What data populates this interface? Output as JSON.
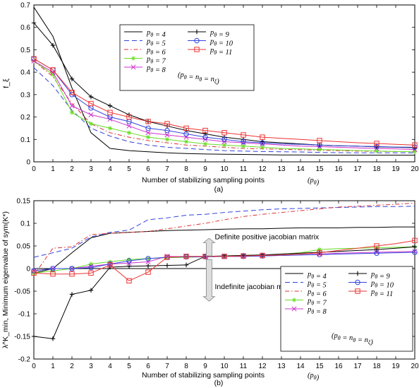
{
  "chart_data": [
    {
      "type": "line",
      "panel_label": "(a)",
      "xlabel": "Number of stabilizing sampling points",
      "xlabel_symbol": "(p_θ)",
      "ylabel": "f_ξ",
      "xlim": [
        0,
        20
      ],
      "ylim": [
        0,
        0.7
      ],
      "x_ticks": [
        0,
        1,
        2,
        3,
        4,
        5,
        6,
        7,
        8,
        9,
        10,
        11,
        12,
        13,
        14,
        15,
        16,
        17,
        18,
        19,
        20
      ],
      "y_ticks": [
        0,
        0.1,
        0.2,
        0.3,
        0.4,
        0.5,
        0.6,
        0.7
      ],
      "grid": false,
      "legend_position": "top-center",
      "legend_note": "(p_θ = n_θ = n_ξ)",
      "series": [
        {
          "name": "p_θ = 4",
          "color": "#000000",
          "dash": "",
          "marker": "none",
          "x": [
            0,
            1,
            2,
            3,
            4,
            5,
            6,
            7,
            8,
            9,
            10,
            11,
            12,
            13,
            14,
            15,
            16,
            17,
            18,
            19,
            20
          ],
          "y": [
            0.69,
            0.56,
            0.33,
            0.13,
            0.06,
            0.05,
            0.045,
            0.04,
            0.037,
            0.035,
            0.034,
            0.033,
            0.032,
            0.031,
            0.031,
            0.03,
            0.03,
            0.03,
            0.03,
            0.03,
            0.03
          ]
        },
        {
          "name": "p_θ = 5",
          "color": "#3344dd",
          "dash": "7,4",
          "marker": "none",
          "x": [
            0,
            1,
            2,
            3,
            4,
            5,
            6,
            7,
            8,
            9,
            10,
            11,
            12,
            13,
            14,
            15,
            16,
            17,
            18,
            19,
            20
          ],
          "y": [
            0.42,
            0.34,
            0.23,
            0.15,
            0.115,
            0.09,
            0.075,
            0.065,
            0.06,
            0.055,
            0.05,
            0.048,
            0.046,
            0.045,
            0.044,
            0.042,
            0.041,
            0.04,
            0.04,
            0.04,
            0.04
          ]
        },
        {
          "name": "p_θ = 6",
          "color": "#dd3333",
          "dash": "6,3,1.5,3",
          "marker": "none",
          "x": [
            0,
            1,
            2,
            3,
            4,
            5,
            6,
            7,
            8,
            9,
            10,
            11,
            12,
            13,
            14,
            15,
            16,
            17,
            18,
            19,
            20
          ],
          "y": [
            0.45,
            0.38,
            0.26,
            0.17,
            0.13,
            0.11,
            0.095,
            0.085,
            0.075,
            0.07,
            0.065,
            0.06,
            0.058,
            0.056,
            0.054,
            0.052,
            0.05,
            0.048,
            0.047,
            0.046,
            0.045
          ]
        },
        {
          "name": "p_θ = 7",
          "color": "#66dd22",
          "dash": "",
          "marker": "star",
          "x": [
            0,
            1,
            2,
            3,
            4,
            5,
            6,
            7,
            8,
            9,
            10,
            11,
            12,
            13,
            14,
            15,
            16,
            17,
            18,
            19,
            20
          ],
          "y": [
            0.45,
            0.39,
            0.22,
            0.17,
            0.15,
            0.13,
            0.11,
            0.1,
            0.09,
            0.08,
            0.075,
            0.07,
            0.065,
            0.06,
            0.058,
            0.055,
            0.053,
            0.05,
            0.048,
            0.046,
            0.045
          ]
        },
        {
          "name": "p_θ = 8",
          "color": "#cc33cc",
          "dash": "",
          "marker": "x",
          "x": [
            0,
            1,
            2,
            3,
            4,
            5,
            6,
            7,
            8,
            9,
            10,
            11,
            12,
            13,
            14,
            15,
            16,
            17,
            18,
            19,
            20
          ],
          "y": [
            0.45,
            0.4,
            0.25,
            0.21,
            0.19,
            0.16,
            0.13,
            0.12,
            0.11,
            0.1,
            0.09,
            0.085,
            0.08,
            0.075,
            0.07,
            0.068,
            0.065,
            0.062,
            0.06,
            0.058,
            0.055
          ]
        },
        {
          "name": "p_θ = 9",
          "color": "#000000",
          "dash": "",
          "marker": "plus",
          "x": [
            0,
            1,
            2,
            3,
            4,
            5,
            6,
            7,
            8,
            9,
            10,
            11,
            12,
            13,
            14,
            15,
            16,
            17,
            18,
            19,
            20
          ],
          "y": [
            0.62,
            0.52,
            0.37,
            0.29,
            0.25,
            0.21,
            0.18,
            0.16,
            0.14,
            0.125,
            0.11,
            0.1,
            0.09,
            0.085,
            0.08,
            0.075,
            0.072,
            0.07,
            0.067,
            0.065,
            0.063
          ]
        },
        {
          "name": "p_θ = 10",
          "color": "#3344dd",
          "dash": "",
          "marker": "circle",
          "x": [
            0,
            1,
            2,
            3,
            4,
            5,
            6,
            7,
            8,
            9,
            10,
            11,
            12,
            13,
            14,
            15,
            16,
            17,
            18,
            19,
            20
          ],
          "y": [
            0.46,
            0.41,
            0.3,
            0.24,
            0.2,
            0.18,
            0.15,
            0.14,
            0.125,
            0.11,
            0.1,
            0.09,
            0.085,
            0.08,
            0.078,
            0.075,
            0.072,
            0.07,
            0.068,
            0.066,
            0.065
          ]
        },
        {
          "name": "p_θ = 11",
          "color": "#ee3333",
          "dash": "",
          "marker": "square",
          "x": [
            0,
            1,
            2,
            3,
            4,
            5,
            6,
            7,
            8,
            9,
            10,
            11,
            12,
            13,
            14,
            15,
            16,
            17,
            18,
            19,
            20
          ],
          "y": [
            0.46,
            0.41,
            0.31,
            0.26,
            0.22,
            0.2,
            0.18,
            0.17,
            0.15,
            0.14,
            0.13,
            0.12,
            0.11,
            0.105,
            0.1,
            0.095,
            0.09,
            0.085,
            0.082,
            0.078,
            0.075
          ]
        }
      ]
    },
    {
      "type": "line",
      "panel_label": "(b)",
      "xlabel": "Number of stabilizing sampling points",
      "xlabel_symbol": "(p_θ)",
      "ylabel": "λ^K_min, Minimum eigenvalue of sym(K*)",
      "xlim": [
        0,
        20
      ],
      "ylim": [
        -0.2,
        0.15
      ],
      "x_ticks": [
        0,
        1,
        2,
        3,
        4,
        5,
        6,
        7,
        8,
        9,
        10,
        11,
        12,
        13,
        14,
        15,
        16,
        17,
        18,
        19,
        20
      ],
      "y_ticks": [
        -0.2,
        -0.15,
        -0.1,
        -0.05,
        0,
        0.05,
        0.1,
        0.15
      ],
      "grid": false,
      "legend_position": "bottom-right",
      "legend_note": "(p_θ = n_θ = n_ξ)",
      "reference_line_y": 0,
      "annotations": [
        "Definite positive jacobian matrix",
        "Indefinite jacobian matrix"
      ],
      "series": [
        {
          "name": "p_θ = 4",
          "color": "#000000",
          "dash": "",
          "marker": "none",
          "x": [
            0,
            1,
            2,
            3,
            4,
            5,
            6,
            7,
            8,
            9,
            10,
            11,
            12,
            13,
            14,
            15,
            16,
            17,
            18,
            19,
            20
          ],
          "y": [
            -0.01,
            0.0,
            0.035,
            0.068,
            0.078,
            0.08,
            0.082,
            0.084,
            0.085,
            0.086,
            0.087,
            0.088,
            0.088,
            0.089,
            0.09,
            0.09,
            0.09,
            0.091,
            0.091,
            0.092,
            0.092
          ]
        },
        {
          "name": "p_θ = 5",
          "color": "#3344dd",
          "dash": "7,4",
          "marker": "none",
          "x": [
            0,
            1,
            2,
            3,
            4,
            5,
            6,
            7,
            8,
            9,
            10,
            11,
            12,
            13,
            14,
            15,
            16,
            17,
            18,
            19,
            20
          ],
          "y": [
            0.025,
            0.035,
            0.045,
            0.07,
            0.08,
            0.085,
            0.108,
            0.112,
            0.118,
            0.12,
            0.124,
            0.127,
            0.13,
            0.132,
            0.133,
            0.134,
            0.135,
            0.136,
            0.137,
            0.137,
            0.138
          ]
        },
        {
          "name": "p_θ = 6",
          "color": "#dd3333",
          "dash": "6,3,1.5,3",
          "marker": "none",
          "x": [
            0,
            1,
            2,
            3,
            4,
            5,
            6,
            7,
            8,
            9,
            10,
            11,
            12,
            13,
            14,
            15,
            16,
            17,
            18,
            19,
            20
          ],
          "y": [
            -0.015,
            0.045,
            0.048,
            0.075,
            0.078,
            0.08,
            0.082,
            0.088,
            0.094,
            0.1,
            0.108,
            0.115,
            0.12,
            0.124,
            0.128,
            0.132,
            0.136,
            0.138,
            0.14,
            0.142,
            0.145
          ]
        },
        {
          "name": "p_θ = 7",
          "color": "#66dd22",
          "dash": "",
          "marker": "star",
          "x": [
            0,
            1,
            2,
            3,
            4,
            5,
            6,
            7,
            8,
            9,
            10,
            11,
            12,
            13,
            14,
            15,
            16,
            17,
            18,
            19,
            20
          ],
          "y": [
            -0.01,
            -0.005,
            0.0,
            0.01,
            0.015,
            0.02,
            0.022,
            0.024,
            0.025,
            0.026,
            0.028,
            0.029,
            0.03,
            0.032,
            0.035,
            0.042,
            0.044,
            0.045,
            0.046,
            0.047,
            0.048
          ]
        },
        {
          "name": "p_θ = 8",
          "color": "#cc33cc",
          "dash": "",
          "marker": "x",
          "x": [
            0,
            1,
            2,
            3,
            4,
            5,
            6,
            7,
            8,
            9,
            10,
            11,
            12,
            13,
            14,
            15,
            16,
            17,
            18,
            19,
            20
          ],
          "y": [
            -0.005,
            0.0,
            0.0,
            0.005,
            0.01,
            0.012,
            0.015,
            0.027,
            0.026,
            0.026,
            0.027,
            0.027,
            0.028,
            0.029,
            0.03,
            0.032,
            0.034,
            0.035,
            0.036,
            0.037,
            0.038
          ]
        },
        {
          "name": "p_θ = 9",
          "color": "#000000",
          "dash": "",
          "marker": "plus",
          "x": [
            0,
            1,
            2,
            3,
            4,
            5,
            6,
            7,
            8,
            9,
            10,
            11,
            12,
            13,
            14,
            15,
            16,
            17,
            18,
            19,
            20
          ],
          "y": [
            -0.15,
            -0.155,
            -0.057,
            -0.048,
            0.003,
            0.005,
            0.006,
            0.007,
            0.008,
            0.027,
            0.028,
            0.029,
            0.03,
            0.032,
            0.034,
            0.036,
            0.038,
            0.04,
            0.042,
            0.045,
            0.048
          ]
        },
        {
          "name": "p_θ = 10",
          "color": "#3344dd",
          "dash": "",
          "marker": "circle",
          "x": [
            0,
            1,
            2,
            3,
            4,
            5,
            6,
            7,
            8,
            9,
            10,
            11,
            12,
            13,
            14,
            15,
            16,
            17,
            18,
            19,
            20
          ],
          "y": [
            -0.005,
            0.0,
            0.0,
            0.002,
            0.01,
            0.017,
            0.022,
            0.025,
            0.026,
            0.026,
            0.027,
            0.027,
            0.028,
            0.029,
            0.03,
            0.031,
            0.032,
            0.033,
            0.034,
            0.035,
            0.036
          ]
        },
        {
          "name": "p_θ = 11",
          "color": "#ee3333",
          "dash": "",
          "marker": "square",
          "x": [
            0,
            1,
            2,
            3,
            4,
            5,
            6,
            7,
            8,
            9,
            10,
            11,
            12,
            13,
            14,
            15,
            16,
            17,
            18,
            19,
            20
          ],
          "y": [
            -0.01,
            -0.012,
            -0.012,
            -0.01,
            0.008,
            -0.027,
            -0.008,
            0.025,
            0.027,
            0.027,
            0.027,
            0.028,
            0.029,
            0.03,
            0.032,
            0.035,
            0.04,
            0.045,
            0.05,
            0.055,
            0.062
          ]
        }
      ]
    }
  ]
}
